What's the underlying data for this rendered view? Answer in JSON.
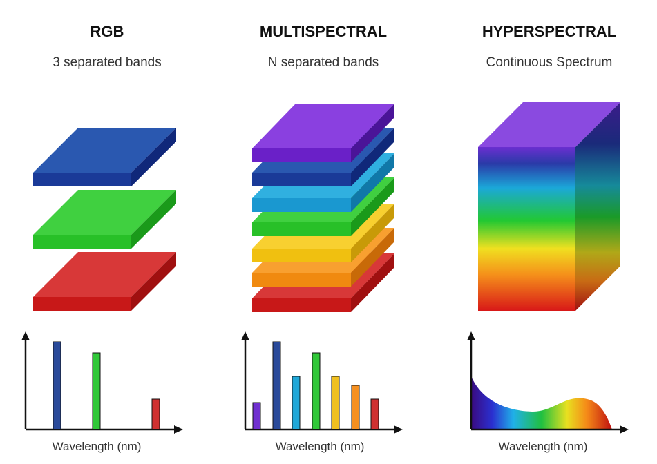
{
  "panels": [
    {
      "title": "RGB",
      "subtitle": "3 separated bands",
      "axis_label": "Wavelength (nm)"
    },
    {
      "title": "MULTISPECTRAL",
      "subtitle": "N separated bands",
      "axis_label": "Wavelength (nm)"
    },
    {
      "title": "HYPERSPECTRAL",
      "subtitle": "Continuous Spectrum",
      "axis_label": "Wavelength (nm)"
    }
  ]
}
